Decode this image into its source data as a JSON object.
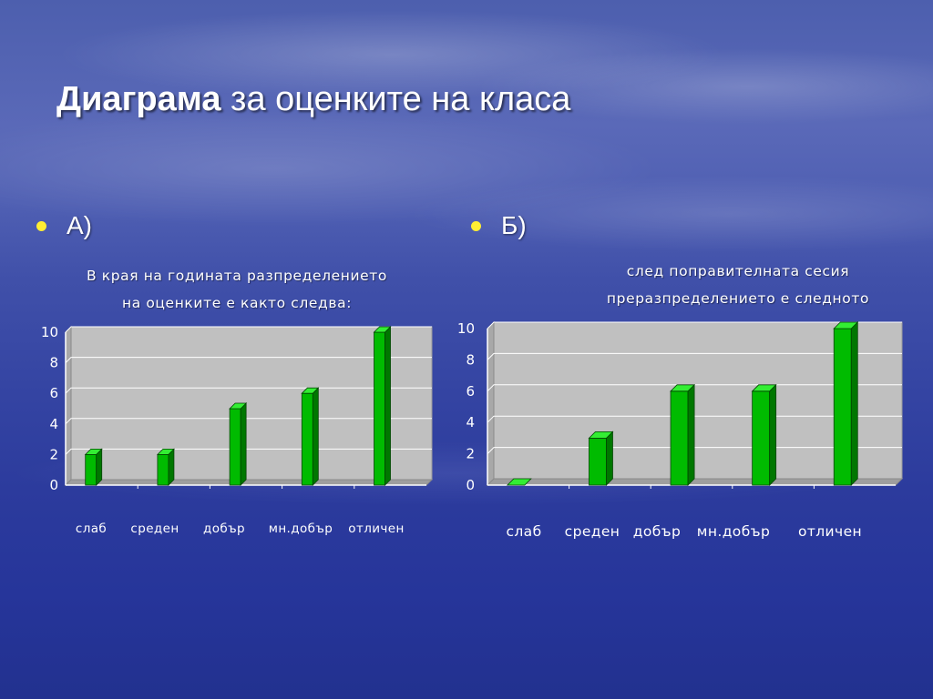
{
  "slide": {
    "title_bold": "Диаграма",
    "title_rest": " за оценките на класа",
    "bullet_a": "А)",
    "bullet_b": "Б)",
    "caption_a": [
      "В края на годината разпределението",
      "на оценките е както следва:"
    ],
    "caption_b": [
      "след поправителната сесия",
      "преразпределението е следното"
    ]
  },
  "colors": {
    "bar_front": "#00bb00",
    "bar_side": "#007700",
    "bar_top": "#33ee33",
    "plot_fill": "#c0c0c0",
    "bullet": "#ffee33"
  },
  "chart_data": [
    {
      "type": "bar",
      "categories": [
        "слаб",
        "среден",
        "добър",
        "мн.добър",
        "отличен"
      ],
      "values": [
        2,
        2,
        5,
        6,
        10
      ],
      "ylim": [
        0,
        10
      ],
      "yticks": [
        0,
        2,
        4,
        6,
        8,
        10
      ],
      "grid": true,
      "legend": "none"
    },
    {
      "type": "bar",
      "categories": [
        "слаб",
        "среден",
        "добър",
        "мн.добър",
        "отличен"
      ],
      "values": [
        0,
        3,
        6,
        6,
        10
      ],
      "ylim": [
        0,
        10
      ],
      "yticks": [
        0,
        2,
        4,
        6,
        8,
        10
      ],
      "grid": true,
      "legend": "none"
    }
  ]
}
